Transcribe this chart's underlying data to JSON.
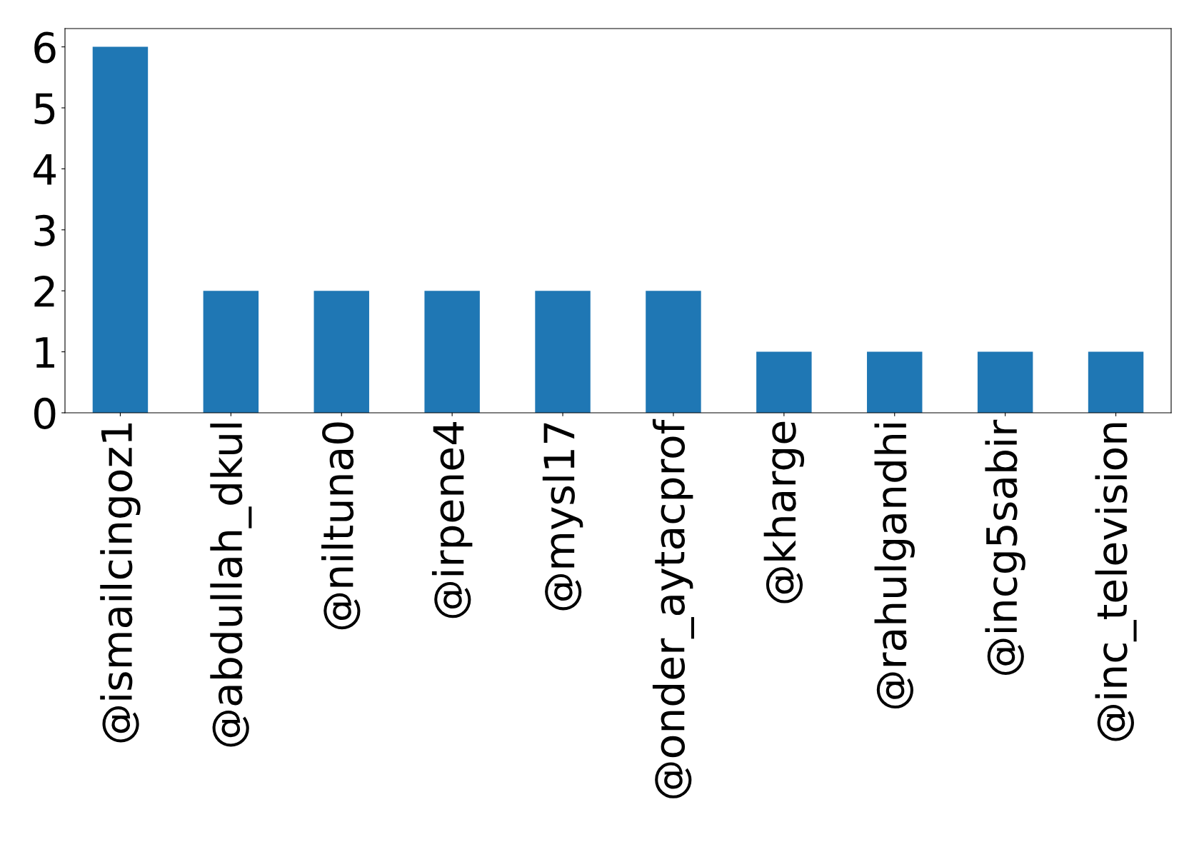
{
  "chart_data": {
    "type": "bar",
    "categories": [
      "@ismailcingoz1",
      "@abdullah_dkul",
      "@niltuna0",
      "@irpene4",
      "@mysl17",
      "@onder_aytacprof",
      "@kharge",
      "@rahulgandhi",
      "@incg5sabir",
      "@inc_television"
    ],
    "values": [
      6,
      2,
      2,
      2,
      2,
      2,
      1,
      1,
      1,
      1
    ],
    "color": "#1f77b4",
    "ylim": [
      0,
      6.3
    ],
    "yticks": [
      0,
      1,
      2,
      3,
      4,
      5,
      6
    ],
    "grid": false,
    "legend": false
  }
}
